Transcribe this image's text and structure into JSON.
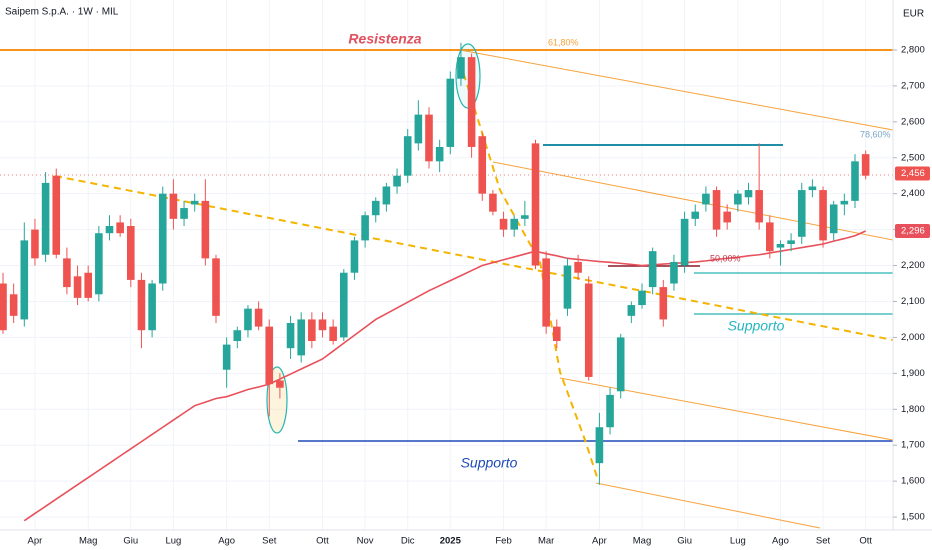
{
  "chart_data": {
    "type": "candlestick",
    "title": "Saipem S.p.A. · 1W · MIL",
    "currency": "EUR",
    "categories": [
      null,
      null,
      null,
      "Apr",
      null,
      null,
      null,
      null,
      "Mag",
      null,
      null,
      null,
      "Giu",
      null,
      null,
      null,
      "Lug",
      null,
      null,
      null,
      null,
      "Ago",
      null,
      null,
      null,
      "Set",
      null,
      null,
      null,
      null,
      "Ott",
      null,
      null,
      null,
      "Nov",
      null,
      null,
      null,
      "Dic",
      null,
      null,
      null,
      "2025",
      null,
      null,
      null,
      null,
      "Feb",
      null,
      null,
      null,
      "Mar",
      null,
      null,
      null,
      null,
      "Apr",
      null,
      null,
      null,
      "Mag",
      null,
      null,
      null,
      "Giu",
      null,
      null,
      null,
      null,
      "Lug",
      null,
      null,
      null,
      "Ago",
      null,
      null,
      null,
      "Set",
      null,
      null,
      null,
      "Ott"
    ],
    "candles": {
      "open": [
        2150,
        2120,
        2050,
        2300,
        2230,
        2450,
        2220,
        2170,
        2180,
        2120,
        2290,
        2320,
        2310,
        2160,
        2020,
        2150,
        2400,
        2330,
        2370,
        2380,
        2220,
        1910,
        1990,
        2020,
        2080,
        2030,
        1880,
        1970,
        1950,
        2050,
        2050,
        2030,
        2000,
        2180,
        2270,
        2340,
        2370,
        2420,
        2450,
        2540,
        2620,
        2490,
        2530,
        2720,
        2780,
        2560,
        2400,
        2330,
        2300,
        2330,
        2540,
        2220,
        2030,
        2080,
        2210,
        2150,
        1650,
        1750,
        1850,
        2060,
        2090,
        2140,
        2140,
        2150,
        2200,
        2330,
        2370,
        2410,
        2350,
        2370,
        2390,
        2410,
        2320,
        2250,
        2260,
        2280,
        2410,
        2410,
        2290,
        2370,
        2380,
        2510
      ],
      "high": [
        2180,
        2150,
        2320,
        2330,
        2460,
        2470,
        2250,
        2200,
        2200,
        2310,
        2340,
        2340,
        2330,
        2180,
        2160,
        2420,
        2440,
        2380,
        2400,
        2440,
        2230,
        2000,
        2030,
        2090,
        2100,
        2050,
        1900,
        2060,
        2070,
        2070,
        2070,
        2050,
        2190,
        2280,
        2350,
        2390,
        2430,
        2470,
        2580,
        2660,
        2640,
        2550,
        2740,
        2820,
        2790,
        2570,
        2410,
        2350,
        2340,
        2380,
        2550,
        2240,
        2050,
        2220,
        2230,
        2170,
        1790,
        1860,
        2010,
        2100,
        2150,
        2250,
        2160,
        2230,
        2350,
        2370,
        2420,
        2420,
        2370,
        2410,
        2430,
        2540,
        2340,
        2270,
        2290,
        2430,
        2440,
        2420,
        2380,
        2400,
        2510,
        2520
      ],
      "low": [
        2010,
        2040,
        2030,
        2200,
        2210,
        2220,
        2120,
        2090,
        2100,
        2100,
        2270,
        2280,
        2140,
        1970,
        2000,
        2130,
        2300,
        2310,
        2350,
        2200,
        2040,
        1860,
        1970,
        2000,
        2020,
        1780,
        1830,
        1940,
        1930,
        1970,
        2000,
        1980,
        1990,
        2160,
        2250,
        2320,
        2350,
        2400,
        2430,
        2520,
        2470,
        2460,
        2510,
        2700,
        2500,
        2380,
        2340,
        2280,
        2280,
        2310,
        2190,
        2010,
        1970,
        2060,
        2160,
        1880,
        1590,
        1730,
        1830,
        2040,
        2080,
        2120,
        2030,
        2130,
        2180,
        2310,
        2350,
        2280,
        2300,
        2350,
        2370,
        2300,
        2220,
        2200,
        2240,
        2260,
        2390,
        2250,
        2270,
        2340,
        2360,
        2440
      ],
      "close": [
        2020,
        2060,
        2270,
        2220,
        2430,
        2230,
        2140,
        2110,
        2110,
        2290,
        2310,
        2290,
        2160,
        2020,
        2150,
        2400,
        2330,
        2360,
        2380,
        2220,
        2060,
        1980,
        2020,
        2080,
        2030,
        1870,
        1860,
        2040,
        2050,
        1990,
        2020,
        1990,
        2180,
        2270,
        2340,
        2380,
        2420,
        2450,
        2560,
        2620,
        2490,
        2530,
        2720,
        2780,
        2530,
        2400,
        2350,
        2300,
        2330,
        2340,
        2200,
        2030,
        1990,
        2200,
        2180,
        1890,
        1750,
        1840,
        2000,
        2090,
        2130,
        2240,
        2050,
        2210,
        2330,
        2350,
        2400,
        2300,
        2320,
        2400,
        2410,
        2320,
        2240,
        2260,
        2270,
        2410,
        2420,
        2270,
        2370,
        2380,
        2490,
        2450
      ]
    },
    "moving_average": {
      "color": "#e8505b",
      "values": [
        null,
        null,
        1490,
        1510,
        1530,
        1550,
        1570,
        1590,
        1610,
        1630,
        1650,
        1670,
        1690,
        1710,
        1730,
        1750,
        1770,
        1790,
        1810,
        1820,
        1830,
        1835,
        1845,
        1855,
        1862,
        1870,
        1884,
        1898,
        1912,
        1926,
        1940,
        1962,
        1984,
        2006,
        2028,
        2050,
        2066,
        2082,
        2098,
        2114,
        2130,
        2144,
        2158,
        2172,
        2186,
        2200,
        2208,
        2216,
        2224,
        2232,
        2240,
        2233,
        2227,
        2220,
        2217,
        2214,
        2211,
        2209,
        2206,
        2203,
        2200,
        2202,
        2204,
        2206,
        2208,
        2210,
        2213,
        2217,
        2220,
        2223,
        2227,
        2230,
        2235,
        2240,
        2245,
        2250,
        2255,
        2260,
        2268,
        2275,
        2283,
        2296
      ]
    },
    "up_color": "#26a69a",
    "down_color": "#ef5350",
    "ylim": [
      1464,
      2939
    ],
    "yticks": [
      {
        "value": 1500,
        "label": "1,500"
      },
      {
        "value": 1600,
        "label": "1,600"
      },
      {
        "value": 1700,
        "label": "1,700"
      },
      {
        "value": 1800,
        "label": "1,800"
      },
      {
        "value": 1900,
        "label": "1,900"
      },
      {
        "value": 2000,
        "label": "2,000"
      },
      {
        "value": 2100,
        "label": "2,100"
      },
      {
        "value": 2200,
        "label": "2,200"
      },
      {
        "value": 2300,
        "label": "2,300"
      },
      {
        "value": 2400,
        "label": "2,400"
      },
      {
        "value": 2500,
        "label": "2,500"
      },
      {
        "value": 2600,
        "label": "2,600"
      },
      {
        "value": 2700,
        "label": "2,700"
      },
      {
        "value": 2800,
        "label": "2,800"
      }
    ],
    "last_price": {
      "value": 2456,
      "label": "2,456"
    },
    "ma_last": {
      "value": 2296,
      "label": "2,296"
    },
    "annotations": {
      "resistance": "Resistenza",
      "support_low": "Supporto",
      "support_right": "Supporto",
      "fib_618": "61,80%",
      "fib_786": "78,60%",
      "fib_500": "50,00%"
    },
    "grid": true
  }
}
